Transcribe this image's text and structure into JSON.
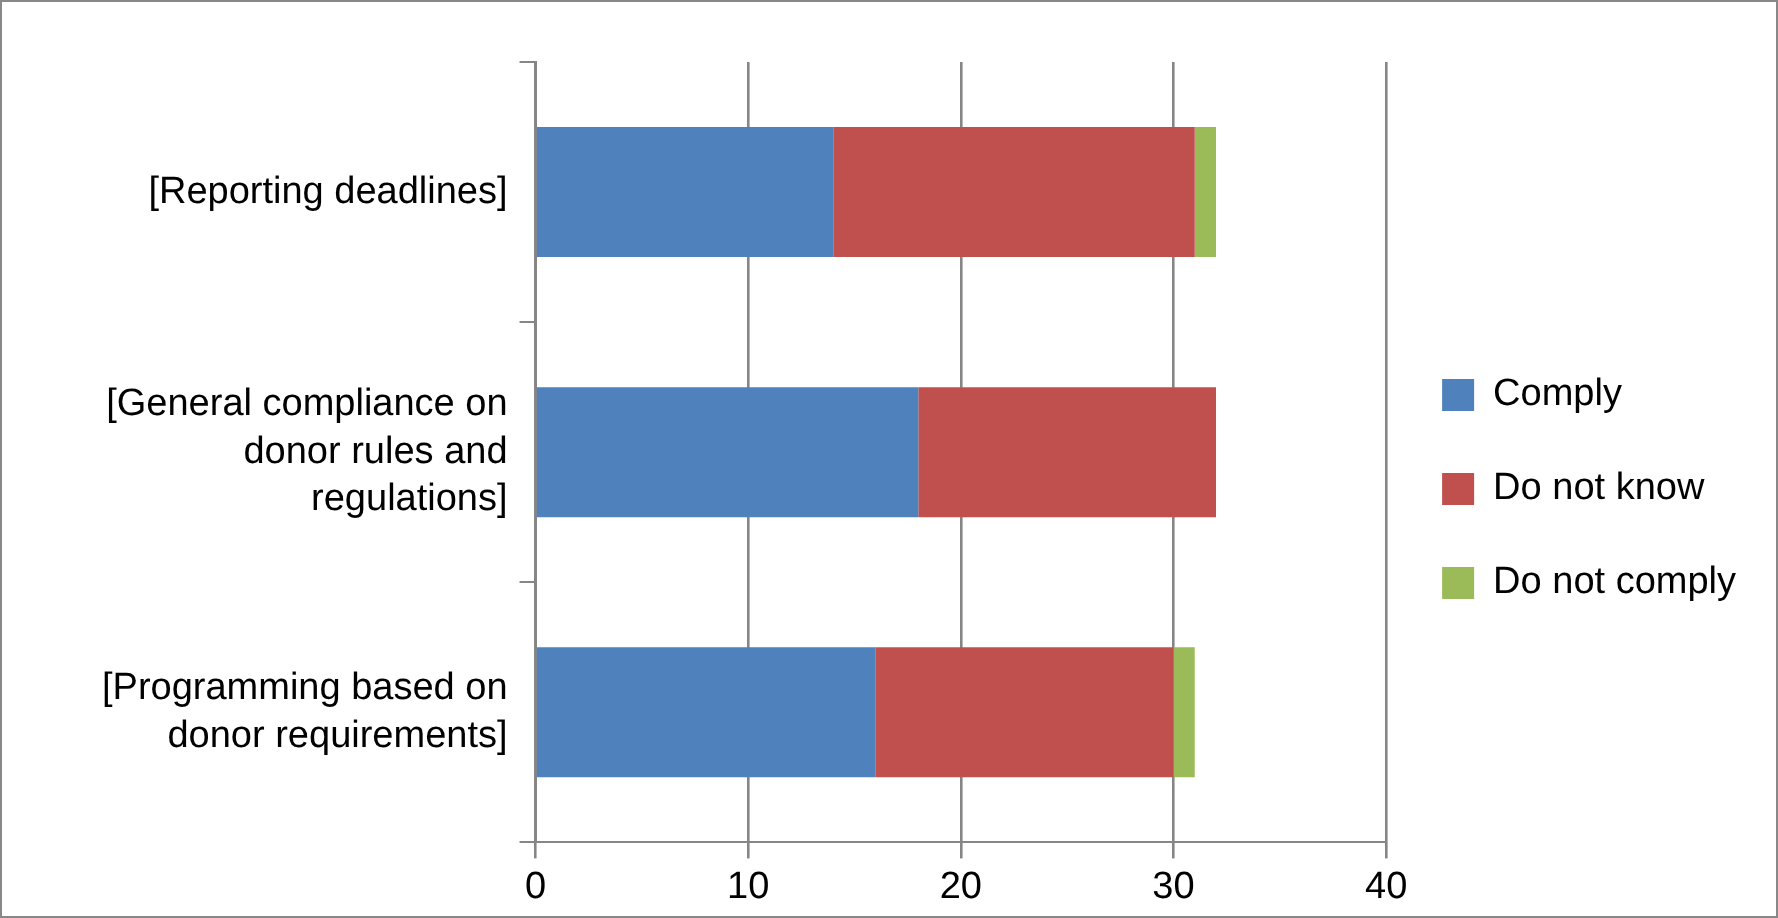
{
  "chart_data": {
    "type": "bar",
    "orientation": "horizontal",
    "stacked": true,
    "categories": [
      "[Reporting deadlines]",
      "[General compliance on donor rules and regulations]",
      "[Programming based on donor requirements]"
    ],
    "series": [
      {
        "name": "Comply",
        "color": "#4f81bd",
        "values": [
          14,
          18,
          16
        ]
      },
      {
        "name": "Do not know",
        "color": "#c0504d",
        "values": [
          17,
          14,
          14
        ]
      },
      {
        "name": "Do not comply",
        "color": "#9bbb59",
        "values": [
          1,
          0,
          1
        ]
      }
    ],
    "xlim": [
      0,
      40
    ],
    "xticks": [
      0,
      10,
      20,
      30,
      40
    ],
    "grid": "x",
    "legend": "right"
  }
}
